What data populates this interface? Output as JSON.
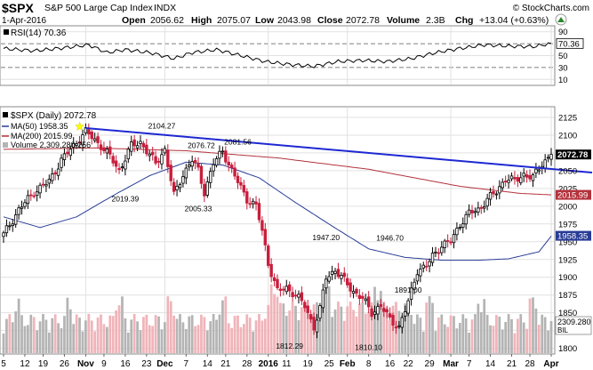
{
  "header": {
    "symbol": "$SPX",
    "name": "S&P 500 Large Cap Index",
    "exchange": "INDX",
    "date": "1-Apr-2016",
    "open_label": "Open",
    "open": "2056.62",
    "high_label": "High",
    "high": "2075.07",
    "low_label": "Low",
    "low": "2043.98",
    "close_label": "Close",
    "close": "2072.78",
    "volume_label": "Volume",
    "volume": "2.3B",
    "chg_label": "Chg",
    "chg": "+13.04 (+0.63%)",
    "watermark": "© StockCharts.com"
  },
  "colors": {
    "up": "#000000",
    "down": "#c81e3c",
    "ma50": "#283c96",
    "ma200": "#b4323c",
    "trendline": "#1e28d2",
    "volume_up": "#b4b4b4",
    "volume_down": "#f0b4b9",
    "grid": "#e1e1e1",
    "price_tag": "#000000",
    "ma50_tag": "#283c96",
    "ma200_tag": "#b4323c",
    "marker": "#ffff00"
  },
  "rsi_panel": {
    "label": "RSI(14) 70.36",
    "last": "70.36",
    "ticks": [
      "90",
      "70",
      "50",
      "30",
      "10"
    ]
  },
  "price_panel": {
    "label": "$SPX (Daily) 2072.78",
    "legend": [
      {
        "key": "ma50",
        "text": "MA(50) 1958.35"
      },
      {
        "key": "ma200",
        "text": "MA(200) 2015.99"
      },
      {
        "key": "volume",
        "text": "Volume 2,309,280,256"
      }
    ],
    "price_tag": "2072.78",
    "ma200_tag": "2015.99",
    "ma50_tag": "1958.35",
    "volume_tag": "2309.280",
    "volume_scale_tag": "BIL"
  },
  "chart_data": {
    "type": "candlestick",
    "title": "S&P 500 Large Cap Index",
    "x_axis_labels": [
      "5",
      "12",
      "19",
      "26",
      "Nov",
      "9",
      "16",
      "23",
      "Dec",
      "7",
      "14",
      "21",
      "28",
      "2016",
      "11",
      "19",
      "25",
      "Feb",
      "8",
      "16",
      "22",
      "29",
      "Mar",
      "7",
      "14",
      "21",
      "28",
      "Apr"
    ],
    "y_axis_ticks": [
      "2125",
      "2100",
      "2075",
      "2050",
      "2025",
      "2000",
      "1975",
      "1950",
      "1925",
      "1900",
      "1875",
      "1850",
      "1825",
      "1800"
    ],
    "y_range": [
      1792,
      2140
    ],
    "rsi_range": [
      0,
      100
    ],
    "annotations": [
      {
        "text": "2104.27",
        "value": 2104.27
      },
      {
        "text": "2076.72",
        "value": 2076.72
      },
      {
        "text": "2081.56",
        "value": 2081.56
      },
      {
        "text": "2019.39",
        "value": 2019.39
      },
      {
        "text": "2005.33",
        "value": 2005.33
      },
      {
        "text": "1947.20",
        "value": 1947.2
      },
      {
        "text": "1946.70",
        "value": 1946.7
      },
      {
        "text": "1891.00",
        "value": 1891.0
      },
      {
        "text": "1812.29",
        "value": 1812.29
      },
      {
        "text": "1810.10",
        "value": 1810.1
      }
    ],
    "close_anchors": [
      [
        0,
        1960
      ],
      [
        5,
        1995
      ],
      [
        10,
        2020
      ],
      [
        15,
        2035
      ],
      [
        19,
        2065
      ],
      [
        24,
        2090
      ],
      [
        27,
        2105
      ],
      [
        32,
        2085
      ],
      [
        35,
        2070
      ],
      [
        38,
        2050
      ],
      [
        42,
        2085
      ],
      [
        45,
        2090
      ],
      [
        50,
        2060
      ],
      [
        53,
        2080
      ],
      [
        56,
        2015
      ],
      [
        59,
        2045
      ],
      [
        62,
        2065
      ],
      [
        64,
        2050
      ],
      [
        66,
        2020
      ],
      [
        69,
        2060
      ],
      [
        72,
        2078
      ],
      [
        75,
        2050
      ],
      [
        80,
        2010
      ],
      [
        83,
        2000
      ],
      [
        85,
        1965
      ],
      [
        87,
        1920
      ],
      [
        90,
        1880
      ],
      [
        93,
        1885
      ],
      [
        96,
        1875
      ],
      [
        99,
        1860
      ],
      [
        102,
        1830
      ],
      [
        104,
        1855
      ],
      [
        106,
        1900
      ],
      [
        109,
        1910
      ],
      [
        112,
        1895
      ],
      [
        115,
        1880
      ],
      [
        118,
        1870
      ],
      [
        121,
        1850
      ],
      [
        124,
        1860
      ],
      [
        127,
        1840
      ],
      [
        130,
        1830
      ],
      [
        133,
        1865
      ],
      [
        136,
        1910
      ],
      [
        139,
        1915
      ],
      [
        141,
        1930
      ],
      [
        144,
        1945
      ],
      [
        147,
        1950
      ],
      [
        150,
        1975
      ],
      [
        153,
        1990
      ],
      [
        156,
        1995
      ],
      [
        159,
        2010
      ],
      [
        162,
        2020
      ],
      [
        165,
        2040
      ],
      [
        168,
        2035
      ],
      [
        171,
        2045
      ],
      [
        174,
        2040
      ],
      [
        177,
        2060
      ],
      [
        180,
        2073
      ]
    ],
    "trendline": [
      [
        27,
        2110
      ],
      [
        181,
        2052
      ]
    ],
    "ma50_anchors": [
      [
        0,
        1985
      ],
      [
        12,
        1970
      ],
      [
        24,
        1985
      ],
      [
        36,
        2015
      ],
      [
        48,
        2043
      ],
      [
        60,
        2062
      ],
      [
        72,
        2058
      ],
      [
        84,
        2040
      ],
      [
        96,
        2005
      ],
      [
        108,
        1972
      ],
      [
        120,
        1940
      ],
      [
        132,
        1928
      ],
      [
        144,
        1924
      ],
      [
        156,
        1924
      ],
      [
        166,
        1926
      ],
      [
        176,
        1936
      ],
      [
        180,
        1958
      ]
    ],
    "ma200_anchors": [
      [
        0,
        2080
      ],
      [
        30,
        2082
      ],
      [
        60,
        2078
      ],
      [
        90,
        2068
      ],
      [
        120,
        2052
      ],
      [
        150,
        2028
      ],
      [
        170,
        2018
      ],
      [
        180,
        2016
      ]
    ],
    "rsi_anchors": [
      [
        0,
        62
      ],
      [
        10,
        58
      ],
      [
        20,
        63
      ],
      [
        28,
        68
      ],
      [
        34,
        55
      ],
      [
        40,
        60
      ],
      [
        48,
        55
      ],
      [
        56,
        45
      ],
      [
        62,
        55
      ],
      [
        70,
        60
      ],
      [
        78,
        50
      ],
      [
        86,
        40
      ],
      [
        94,
        35
      ],
      [
        102,
        32
      ],
      [
        110,
        40
      ],
      [
        118,
        42
      ],
      [
        126,
        40
      ],
      [
        134,
        45
      ],
      [
        142,
        55
      ],
      [
        150,
        62
      ],
      [
        158,
        68
      ],
      [
        166,
        66
      ],
      [
        174,
        65
      ],
      [
        180,
        70.36
      ]
    ]
  }
}
